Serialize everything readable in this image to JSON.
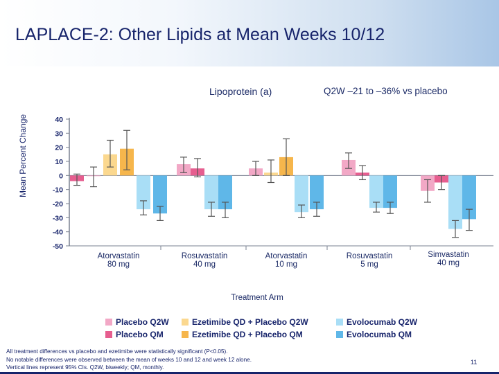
{
  "title": "LAPLACE-2: Other Lipids at Mean Weeks 10/12",
  "subtitle": "Lipoprotein (a)",
  "subtitle_right": "Q2W –21 to –36% vs placebo",
  "page_number": "11",
  "footnotes": [
    "All treatment differences vs placebo and ezetimibe were statistically significant (P<0.05).",
    "No notable differences were observed between the mean of weeks 10 and 12 and week 12 alone.",
    "Vertical lines represent 95% CIs. Q2W, biweekly; QM, monthly."
  ],
  "colors": {
    "placebo_q2w": "#f2a8c6",
    "placebo_qm": "#e65e8f",
    "ezetimibe_q2w": "#fbd88f",
    "ezetimibe_qm": "#f6b64c",
    "evolocumab_q2w": "#a9def6",
    "evolocumab_qm": "#5fb7e8",
    "navy": "#17246b",
    "axis": "#7a8190"
  },
  "chart_data": {
    "type": "bar",
    "title": "Lipoprotein (a)",
    "xlabel": "Treatment Arm",
    "ylabel": "Mean Percent Change",
    "ylim": [
      -50,
      40
    ],
    "yticks": [
      40,
      30,
      20,
      10,
      0,
      -10,
      -20,
      -30,
      -40,
      -50
    ],
    "categories": [
      "Atorvastatin\n80 mg",
      "Rosuvastatin\n40 mg",
      "Atorvastatin\n10 mg",
      "Rosuvastatin\n5 mg",
      "Simvastatin\n40 mg"
    ],
    "groups": [
      {
        "bars": [
          {
            "series": "Placebo QM",
            "value": -4,
            "ci": [
              -7,
              1
            ]
          },
          {
            "series": "Placebo Q2W",
            "value": 0,
            "ci": [
              -8,
              6
            ]
          },
          {
            "series": "Ezetimibe QD + Placebo Q2W",
            "value": 15,
            "ci": [
              6,
              25
            ]
          },
          {
            "series": "Ezetimibe QD + Placebo QM",
            "value": 19,
            "ci": [
              4,
              32
            ]
          },
          {
            "series": "Evolocumab Q2W",
            "value": -24,
            "ci": [
              -28,
              -18
            ]
          },
          {
            "series": "Evolocumab QM",
            "value": -27,
            "ci": [
              -32,
              -22
            ]
          }
        ]
      },
      {
        "bars": [
          {
            "series": "Placebo Q2W",
            "value": 8,
            "ci": [
              2,
              13
            ]
          },
          {
            "series": "Placebo QM",
            "value": 5,
            "ci": [
              -1,
              12
            ]
          },
          {
            "series": "Evolocumab Q2W",
            "value": -24,
            "ci": [
              -29,
              -19
            ]
          },
          {
            "series": "Evolocumab QM",
            "value": -24,
            "ci": [
              -30,
              -19
            ]
          }
        ]
      },
      {
        "bars": [
          {
            "series": "Placebo Q2W",
            "value": 5,
            "ci": [
              0,
              10
            ]
          },
          {
            "series": "Ezetimibe QD + Placebo Q2W",
            "value": 2,
            "ci": [
              -5,
              11
            ]
          },
          {
            "series": "Ezetimibe QD + Placebo QM",
            "value": 13,
            "ci": [
              0,
              26
            ]
          },
          {
            "series": "Evolocumab Q2W",
            "value": -26,
            "ci": [
              -30,
              -21
            ]
          },
          {
            "series": "Evolocumab QM",
            "value": -24,
            "ci": [
              -29,
              -19
            ]
          }
        ]
      },
      {
        "bars": [
          {
            "series": "Placebo Q2W",
            "value": 11,
            "ci": [
              5,
              16
            ]
          },
          {
            "series": "Placebo QM",
            "value": 2,
            "ci": [
              -3,
              7
            ]
          },
          {
            "series": "Evolocumab Q2W",
            "value": -23,
            "ci": [
              -26,
              -19
            ]
          },
          {
            "series": "Evolocumab QM",
            "value": -23,
            "ci": [
              -27,
              -19
            ]
          }
        ]
      },
      {
        "bars": [
          {
            "series": "Placebo Q2W",
            "value": -11,
            "ci": [
              -19,
              -3
            ]
          },
          {
            "series": "Placebo QM",
            "value": -5,
            "ci": [
              -10,
              0
            ]
          },
          {
            "series": "Evolocumab Q2W",
            "value": -38,
            "ci": [
              -44,
              -32
            ]
          },
          {
            "series": "Evolocumab QM",
            "value": -31,
            "ci": [
              -39,
              -24
            ]
          }
        ]
      }
    ],
    "legend": [
      {
        "label": "Placebo Q2W",
        "color_key": "placebo_q2w"
      },
      {
        "label": "Ezetimibe QD + Placebo Q2W",
        "color_key": "ezetimibe_q2w"
      },
      {
        "label": "Evolocumab Q2W",
        "color_key": "evolocumab_q2w"
      },
      {
        "label": "Placebo QM",
        "color_key": "placebo_qm"
      },
      {
        "label": "Ezetimibe QD + Placebo QM",
        "color_key": "ezetimibe_qm"
      },
      {
        "label": "Evolocumab QM",
        "color_key": "evolocumab_qm"
      }
    ]
  }
}
